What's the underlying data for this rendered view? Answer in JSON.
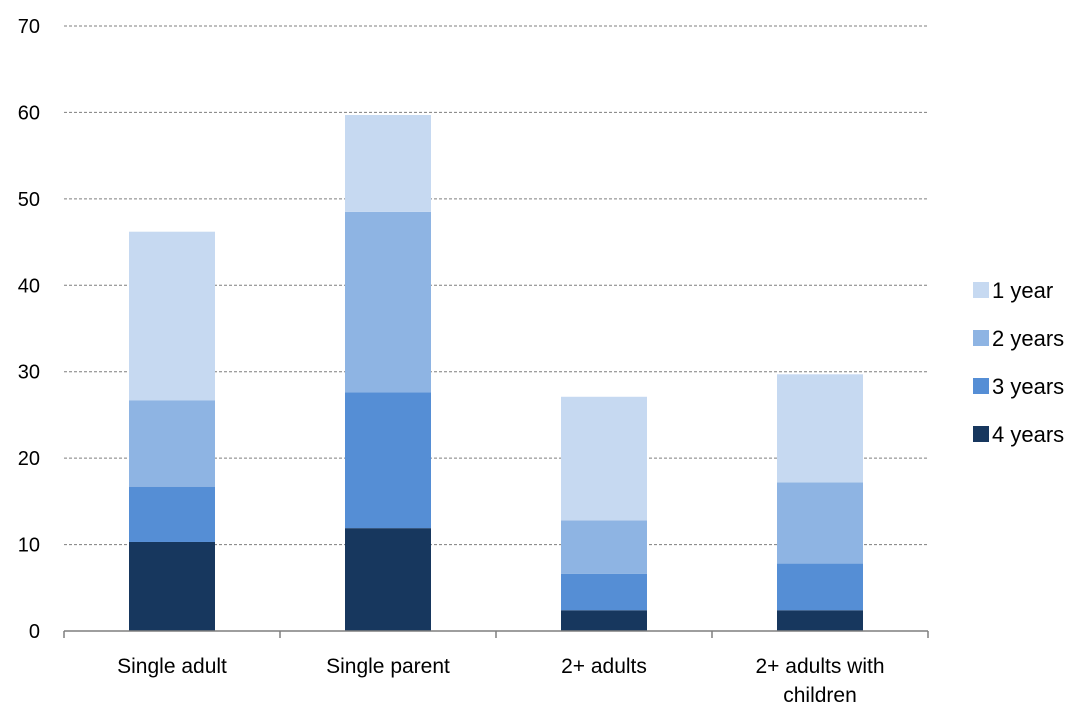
{
  "chart_data": {
    "type": "bar",
    "stacked": true,
    "title": "",
    "xlabel": "",
    "ylabel": "",
    "ylim": [
      0,
      70
    ],
    "yticks": [
      0,
      10,
      20,
      30,
      40,
      50,
      60,
      70
    ],
    "grid": true,
    "legend_position": "right",
    "categories": [
      [
        "Single adult"
      ],
      [
        "Single parent"
      ],
      [
        "2+ adults"
      ],
      [
        "2+ adults with",
        "children"
      ]
    ],
    "series": [
      {
        "name": "4 years",
        "color": "#17375e",
        "values": [
          10.3,
          11.9,
          2.4,
          2.4
        ]
      },
      {
        "name": "3 years",
        "color": "#558ed5",
        "values": [
          6.4,
          15.7,
          4.2,
          5.4
        ]
      },
      {
        "name": "2 years",
        "color": "#8eb4e3",
        "values": [
          10.0,
          20.9,
          6.2,
          9.4
        ]
      },
      {
        "name": "1 year",
        "color": "#c6d9f1",
        "values": [
          19.5,
          11.2,
          14.3,
          12.5
        ]
      }
    ],
    "legend_order": [
      "1 year",
      "2 years",
      "3 years",
      "4 years"
    ]
  }
}
